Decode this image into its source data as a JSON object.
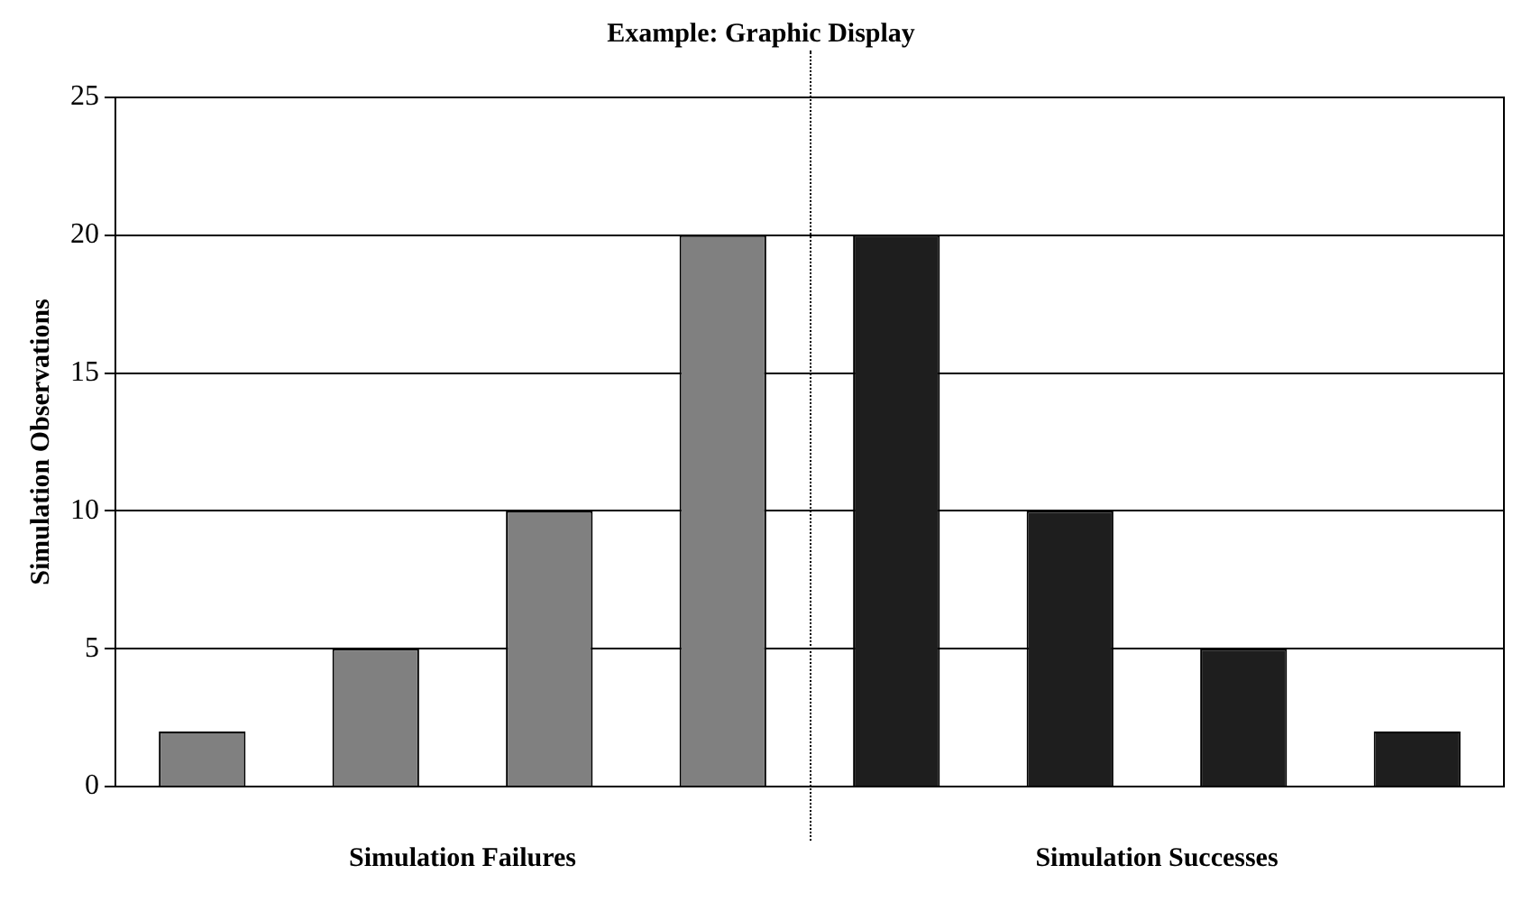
{
  "chart_data": {
    "type": "bar",
    "title": "Example: Graphic Display",
    "ylabel": "Simulation Observations",
    "categories": [
      null,
      null,
      null,
      null,
      null,
      null,
      null,
      null
    ],
    "values": [
      2,
      5,
      10,
      20,
      20,
      10,
      5,
      2
    ],
    "colors": [
      "#808080",
      "#808080",
      "#808080",
      "#808080",
      "#1e1e1e",
      "#1e1e1e",
      "#1e1e1e",
      "#1e1e1e"
    ],
    "ylim": [
      0,
      25
    ],
    "yticks": [
      0,
      5,
      10,
      15,
      20,
      25
    ],
    "grid": "y",
    "legend": false,
    "annotations": [
      "Simulation Failures",
      "Simulation Successes"
    ]
  }
}
